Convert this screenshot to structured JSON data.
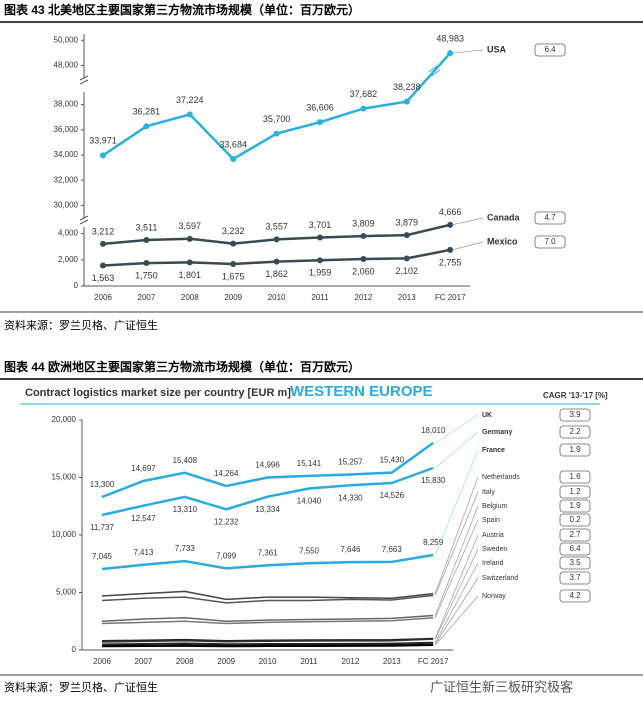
{
  "watermark": "广证恒生新三板研究极客",
  "chart_data": [
    {
      "type": "line",
      "caption": "图表 43 北美地区主要国家第三方物流市场规模（单位：百万欧元）",
      "source": "资料来源：罗兰贝格、广证恒生",
      "categories": [
        "2006",
        "2007",
        "2008",
        "2009",
        "2010",
        "2011",
        "2012",
        "2013",
        "FC 2017"
      ],
      "axis_segments": [
        {
          "ylim": [
            0,
            4500
          ],
          "yticks": [
            0,
            {
              "value": 2000,
              "label": "2,000"
            },
            {
              "value": 4000,
              "label": "4,000"
            }
          ]
        },
        {
          "ylim": [
            29000,
            39000
          ],
          "yticks": [
            {
              "value": 30000,
              "label": "30,000"
            },
            {
              "value": 32000,
              "label": "32,000"
            },
            {
              "value": 34000,
              "label": "34,000"
            },
            {
              "value": 36000,
              "label": "36,000"
            },
            {
              "value": 38000,
              "label": "38,000"
            }
          ]
        },
        {
          "ylim": [
            47000,
            50500
          ],
          "yticks": [
            {
              "value": 48000,
              "label": "48,000"
            },
            {
              "value": 50000,
              "label": "50,000"
            }
          ]
        }
      ],
      "grid": false,
      "series": [
        {
          "name": "USA",
          "color": "#2ab0e0",
          "cagr": "6.4",
          "values": [
            33971,
            36281,
            37224,
            33684,
            35700,
            36606,
            37682,
            38238,
            48983
          ],
          "value_labels": [
            "33,971",
            "36,281",
            "37,224",
            "33,684",
            "35,700",
            "36,606",
            "37,682",
            "38,238",
            "48,983"
          ]
        },
        {
          "name": "Canada",
          "color": "#3a4a55",
          "cagr": "4.7",
          "values": [
            3212,
            3511,
            3597,
            3232,
            3557,
            3701,
            3809,
            3879,
            4666
          ],
          "value_labels": [
            "3,212",
            "3,511",
            "3,597",
            "3,232",
            "3,557",
            "3,701",
            "3,809",
            "3,879",
            "4,666"
          ]
        },
        {
          "name": "Mexico",
          "color": "#3a4a55",
          "cagr": "7.0",
          "values": [
            1563,
            1750,
            1801,
            1675,
            1862,
            1959,
            2060,
            2102,
            2755
          ],
          "value_labels": [
            "1,563",
            "1,750",
            "1,801",
            "1,675",
            "1,862",
            "1,959",
            "2,060",
            "2,102",
            "2,755"
          ]
        }
      ]
    },
    {
      "type": "line",
      "caption": "图表 44 欧洲地区主要国家第三方物流市场规模（单位：百万欧元）",
      "title": "Contract logistics market size per country [EUR m]",
      "subtitle": "WESTERN EUROPE",
      "cagr_header": "CAGR '13-'17 [%]",
      "source": "资料来源：罗兰贝格、广证恒生",
      "categories": [
        "2006",
        "2007",
        "2008",
        "2009",
        "2010",
        "2011",
        "2012",
        "2013",
        "FC 2017"
      ],
      "ylim": [
        0,
        20000
      ],
      "yticks": [
        0,
        {
          "value": 5000,
          "label": "5,000"
        },
        {
          "value": 10000,
          "label": "10,000"
        },
        {
          "value": 15000,
          "label": "15,000"
        },
        {
          "value": 20000,
          "label": "20,000"
        }
      ],
      "grid": false,
      "series": [
        {
          "name": "UK",
          "color": "#29abe2",
          "cagr": "3.9",
          "values": [
            13300,
            14697,
            15408,
            14264,
            14996,
            15141,
            15257,
            15430,
            18010
          ],
          "value_labels": [
            "13,300",
            "14,697",
            "15,408",
            "14,264",
            "14,996",
            "15,141",
            "15,257",
            "15,430",
            "18,010"
          ]
        },
        {
          "name": "Germany",
          "color": "#29abe2",
          "cagr": "2.2",
          "values": [
            11737,
            12547,
            13310,
            12232,
            13334,
            14040,
            14330,
            14526,
            15830
          ],
          "value_labels": [
            "11,737",
            "12,547",
            "13,310",
            "12,232",
            "13,334",
            "14,040",
            "14,330",
            "14,526",
            "15,830"
          ]
        },
        {
          "name": "France",
          "color": "#29abe2",
          "cagr": "1.9",
          "values": [
            7045,
            7413,
            7733,
            7099,
            7361,
            7550,
            7646,
            7663,
            8259
          ],
          "value_labels": [
            "7,045",
            "7,413",
            "7,733",
            "7,099",
            "7,361",
            "7,550",
            "7,646",
            "7,663",
            "8,259"
          ]
        },
        {
          "name": "Netherlands",
          "color": "#444444",
          "cagr": "1.6",
          "values": [
            4700,
            4900,
            5100,
            4400,
            4600,
            4600,
            4550,
            4500,
            4900
          ]
        },
        {
          "name": "Italy",
          "color": "#555555",
          "cagr": "1.2",
          "values": [
            4300,
            4500,
            4600,
            4100,
            4300,
            4300,
            4400,
            4350,
            4750
          ]
        },
        {
          "name": "Belgium",
          "color": "#666666",
          "cagr": "1.9",
          "values": [
            2500,
            2700,
            2800,
            2500,
            2600,
            2650,
            2700,
            2750,
            3000
          ]
        },
        {
          "name": "Spain",
          "color": "#777777",
          "cagr": "0.2",
          "values": [
            2300,
            2400,
            2500,
            2300,
            2400,
            2450,
            2500,
            2550,
            2800
          ]
        },
        {
          "name": "Austria",
          "color": "#222222",
          "cagr": "2.7",
          "values": [
            800,
            850,
            900,
            800,
            850,
            870,
            880,
            890,
            1000
          ]
        },
        {
          "name": "Sweden",
          "color": "#333333",
          "cagr": "6.4",
          "values": [
            700,
            750,
            800,
            720,
            760,
            780,
            790,
            800,
            950
          ]
        },
        {
          "name": "Ireland",
          "color": "#222222",
          "cagr": "3.5",
          "values": [
            500,
            550,
            580,
            520,
            540,
            550,
            560,
            570,
            650
          ]
        },
        {
          "name": "Switzerland",
          "color": "#111111",
          "cagr": "3.7",
          "values": [
            400,
            420,
            450,
            400,
            420,
            430,
            440,
            450,
            520
          ]
        },
        {
          "name": "Norway",
          "color": "#000000",
          "cagr": "4.2",
          "values": [
            300,
            320,
            340,
            300,
            320,
            330,
            340,
            350,
            420
          ]
        }
      ]
    }
  ]
}
